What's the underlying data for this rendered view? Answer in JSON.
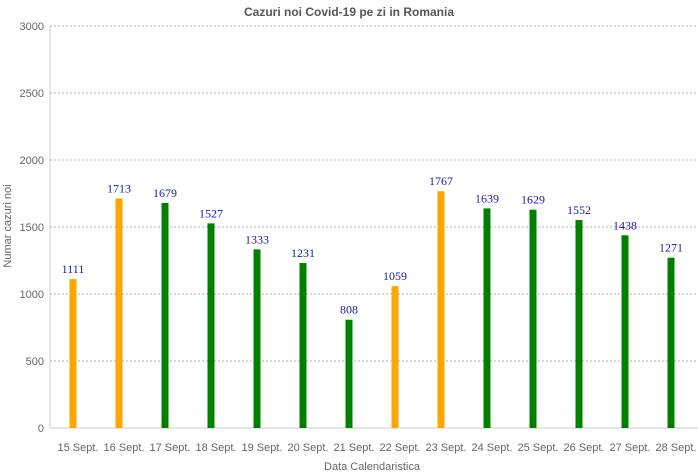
{
  "chart_data": {
    "type": "bar",
    "title": "Cazuri noi Covid-19 pe zi in Romania",
    "xlabel": "Data Calendaristica",
    "ylabel": "Numar cazuri noi",
    "ylim": [
      0,
      3000
    ],
    "yticks": [
      "0",
      "500",
      "1000",
      "1500",
      "2000",
      "2500",
      "3000"
    ],
    "grid": true,
    "categories": [
      "15 Sept.",
      "16 Sept.",
      "17 Sept.",
      "18 Sept.",
      "19 Sept.",
      "20 Sept.",
      "21 Sept.",
      "22 Sept.",
      "23 Sept.",
      "24 Sept.",
      "25 Sept.",
      "26 Sept.",
      "27 Sept.",
      "28 Sept."
    ],
    "values": [
      1111,
      1713,
      1679,
      1527,
      1333,
      1231,
      808,
      1059,
      1767,
      1639,
      1629,
      1552,
      1438,
      1271
    ],
    "value_labels": [
      "1111",
      "1713",
      "1679",
      "1527",
      "1333",
      "1231",
      "808",
      "1059",
      "1767",
      "1639",
      "1629",
      "1552",
      "1438",
      "1271"
    ],
    "bar_colors": [
      "#ffa500",
      "#ffa500",
      "#008000",
      "#008000",
      "#008000",
      "#008000",
      "#008000",
      "#ffa500",
      "#ffa500",
      "#008000",
      "#008000",
      "#008000",
      "#008000",
      "#008000"
    ]
  }
}
